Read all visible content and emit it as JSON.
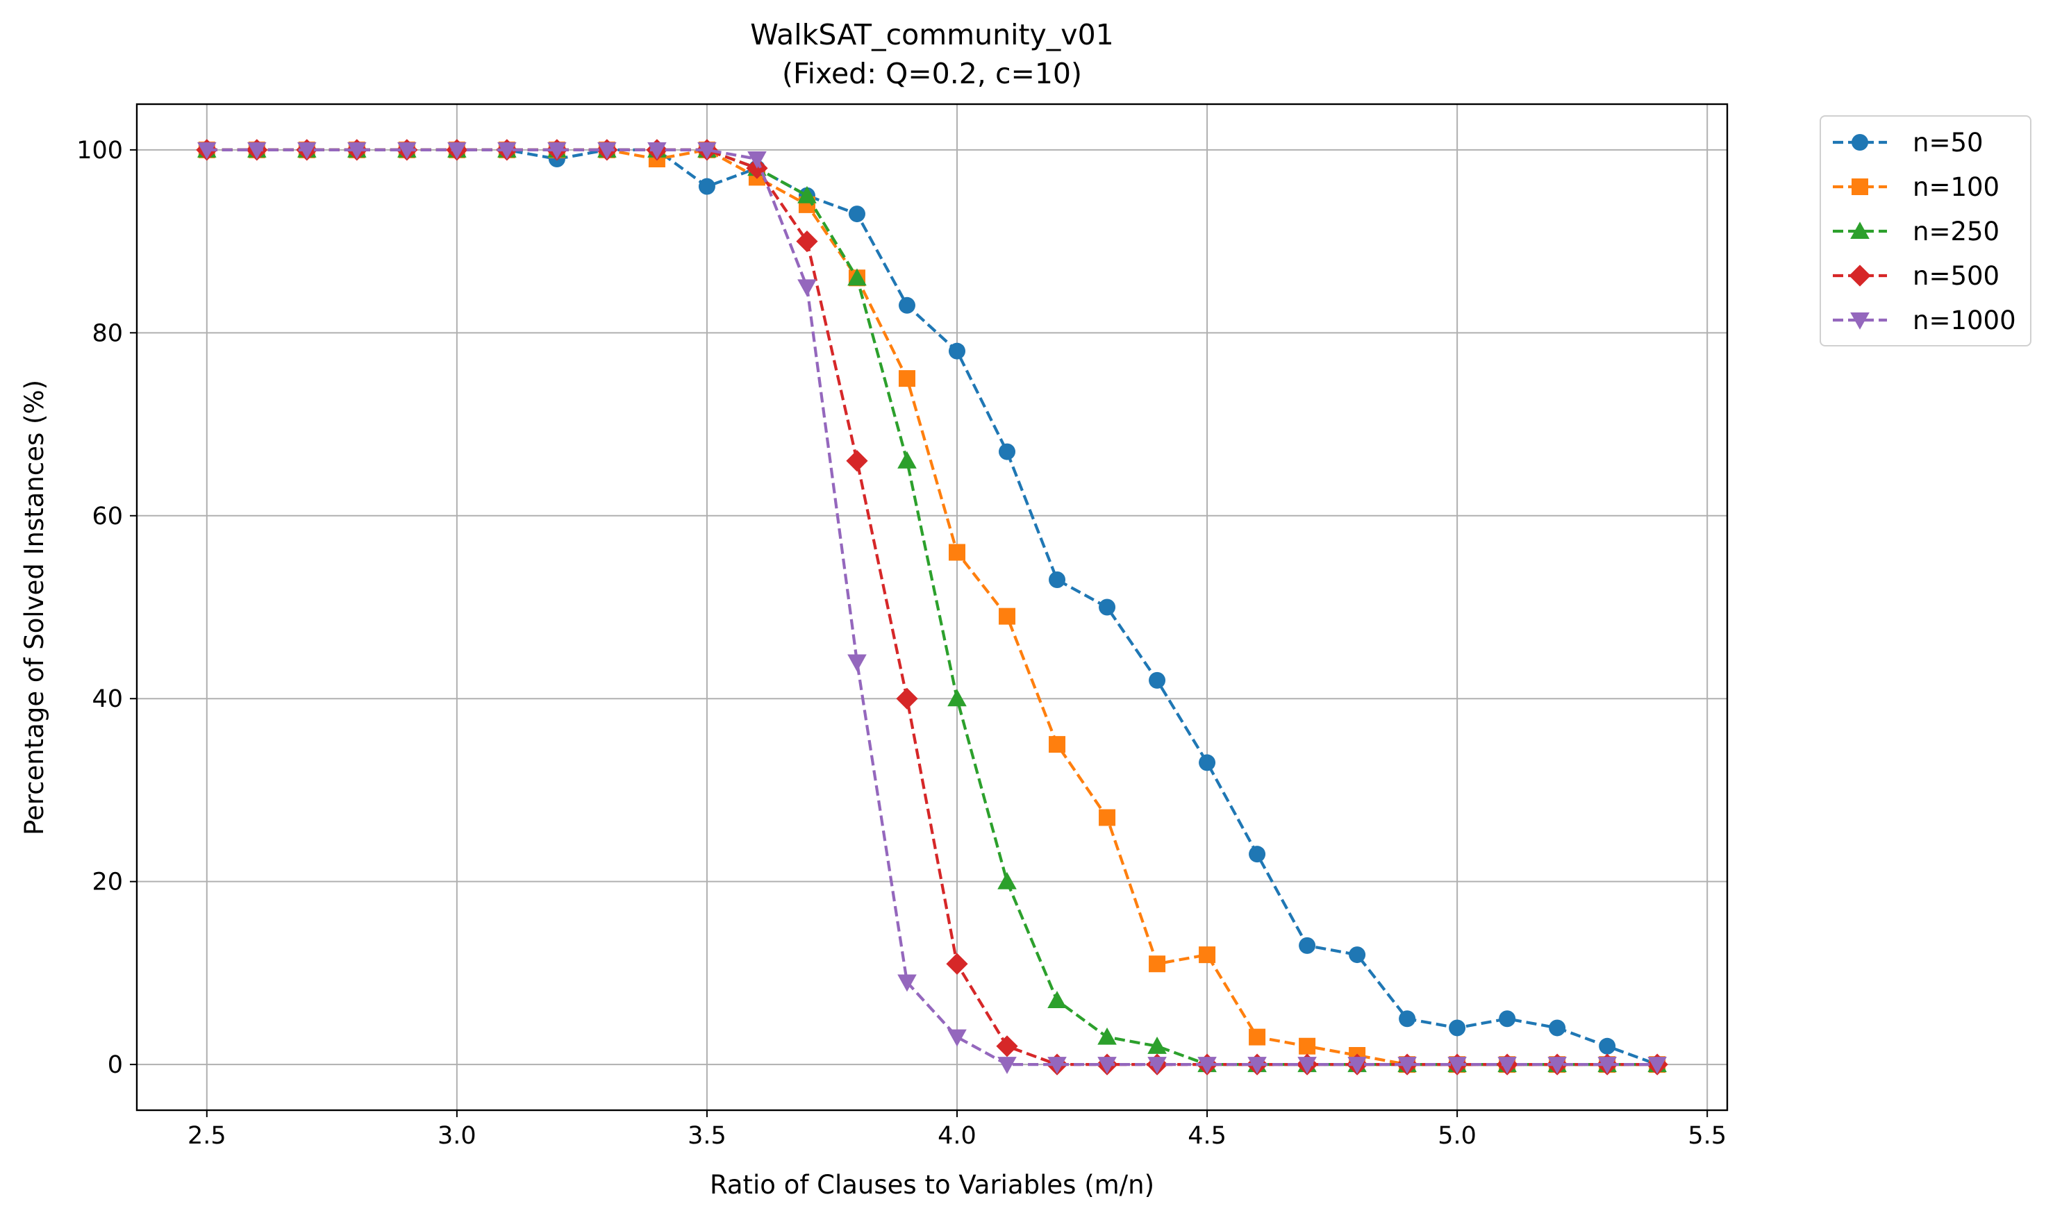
{
  "chart_data": {
    "type": "line",
    "title": "WalkSAT_community_v01",
    "subtitle": "(Fixed: Q=0.2, c=10)",
    "xlabel": "Ratio of Clauses to Variables (m/n)",
    "ylabel": "Percentage of Solved Instances (%)",
    "xlim": [
      2.36,
      5.54
    ],
    "ylim": [
      -5,
      105
    ],
    "x_ticks": [
      2.5,
      3.0,
      3.5,
      4.0,
      4.5,
      5.0,
      5.5
    ],
    "x_tick_labels": [
      "2.5",
      "3.0",
      "3.5",
      "4.0",
      "4.5",
      "5.0",
      "5.5"
    ],
    "y_ticks": [
      0,
      20,
      40,
      60,
      80,
      100
    ],
    "y_tick_labels": [
      "0",
      "20",
      "40",
      "60",
      "80",
      "100"
    ],
    "grid": true,
    "legend_position": "outside-top-right",
    "x": [
      2.5,
      2.6,
      2.7,
      2.8,
      2.9,
      3.0,
      3.1,
      3.2,
      3.3,
      3.4,
      3.5,
      3.6,
      3.7,
      3.8,
      3.9,
      4.0,
      4.1,
      4.2,
      4.3,
      4.4,
      4.5,
      4.6,
      4.7,
      4.8,
      4.9,
      5.0,
      5.1,
      5.2,
      5.3,
      5.4
    ],
    "series": [
      {
        "name": "n=50",
        "color": "#1f77b4",
        "marker": "circle",
        "values": [
          100,
          100,
          100,
          100,
          100,
          100,
          100,
          99,
          100,
          100,
          96,
          98,
          95,
          93,
          83,
          78,
          67,
          53,
          50,
          42,
          33,
          23,
          13,
          12,
          5,
          4,
          5,
          4,
          2,
          0
        ]
      },
      {
        "name": "n=100",
        "color": "#ff7f0e",
        "marker": "square",
        "values": [
          100,
          100,
          100,
          100,
          100,
          100,
          100,
          100,
          100,
          99,
          100,
          97,
          94,
          86,
          75,
          56,
          49,
          35,
          27,
          11,
          12,
          3,
          2,
          1,
          0,
          0,
          0,
          0,
          0,
          0
        ]
      },
      {
        "name": "n=250",
        "color": "#2ca02c",
        "marker": "triangle-up",
        "values": [
          100,
          100,
          100,
          100,
          100,
          100,
          100,
          100,
          100,
          100,
          100,
          98,
          95,
          86,
          66,
          40,
          20,
          7,
          3,
          2,
          0,
          0,
          0,
          0,
          0,
          0,
          0,
          0,
          0,
          0
        ]
      },
      {
        "name": "n=500",
        "color": "#d62728",
        "marker": "diamond",
        "values": [
          100,
          100,
          100,
          100,
          100,
          100,
          100,
          100,
          100,
          100,
          100,
          98,
          90,
          66,
          40,
          11,
          2,
          0,
          0,
          0,
          0,
          0,
          0,
          0,
          0,
          0,
          0,
          0,
          0,
          0
        ]
      },
      {
        "name": "n=1000",
        "color": "#9467bd",
        "marker": "triangle-down",
        "values": [
          100,
          100,
          100,
          100,
          100,
          100,
          100,
          100,
          100,
          100,
          100,
          99,
          85,
          44,
          9,
          3,
          0,
          0,
          0,
          0,
          0,
          0,
          0,
          0,
          0,
          0,
          0,
          0,
          0,
          0
        ]
      }
    ]
  }
}
